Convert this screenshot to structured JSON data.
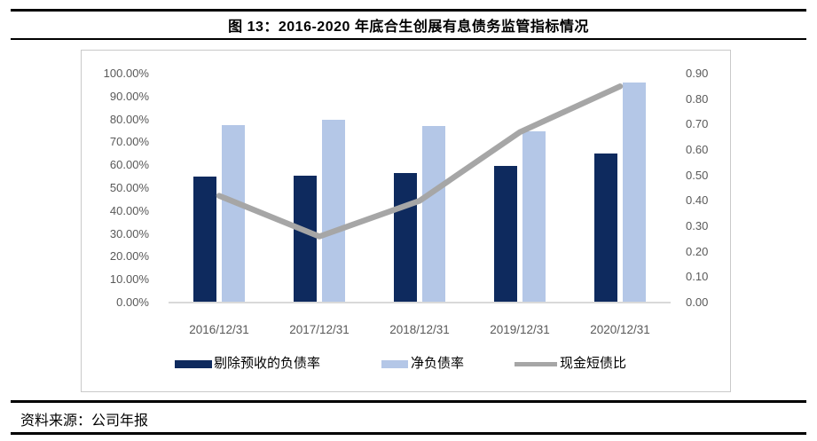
{
  "title": "图 13：2016-2020 年底合生创展有息债务监管指标情况",
  "source_note": "资料来源：公司年报",
  "colors": {
    "bar_dark_navy": "#0e2a5e",
    "bar_light_blue": "#b4c7e7",
    "line_gray": "#a6a6a6",
    "axis_text": "#595959",
    "frame_border": "#c9c9c9",
    "rule_black": "#000000"
  },
  "chart_data": {
    "type": "bar",
    "subtype": "grouped bars with secondary-axis line",
    "categories": [
      "2016/12/31",
      "2017/12/31",
      "2018/12/31",
      "2019/12/31",
      "2020/12/31"
    ],
    "series": [
      {
        "name": "剔除预收的负债率",
        "type": "bar",
        "axis": "left",
        "color": "#0e2a5e",
        "values_pct": [
          55.0,
          55.5,
          56.4,
          59.8,
          65.0
        ]
      },
      {
        "name": "净负债率",
        "type": "bar",
        "axis": "left",
        "color": "#b4c7e7",
        "values_pct": [
          77.6,
          79.7,
          77.3,
          74.8,
          96.0
        ]
      },
      {
        "name": "现金短债比",
        "type": "line",
        "axis": "right",
        "color": "#a6a6a6",
        "values": [
          0.42,
          0.26,
          0.4,
          0.67,
          0.85
        ]
      }
    ],
    "left_axis": {
      "min": 0,
      "max": 100,
      "step": 10,
      "ticks": [
        "100.00%",
        "90.00%",
        "80.00%",
        "70.00%",
        "60.00%",
        "50.00%",
        "40.00%",
        "30.00%",
        "20.00%",
        "10.00%",
        "0.00%"
      ]
    },
    "right_axis": {
      "min": 0,
      "max": 0.9,
      "step": 0.1,
      "ticks": [
        "0.90",
        "0.80",
        "0.70",
        "0.60",
        "0.50",
        "0.40",
        "0.30",
        "0.20",
        "0.10",
        "0.00"
      ]
    },
    "grid": false,
    "legend_position": "bottom"
  }
}
